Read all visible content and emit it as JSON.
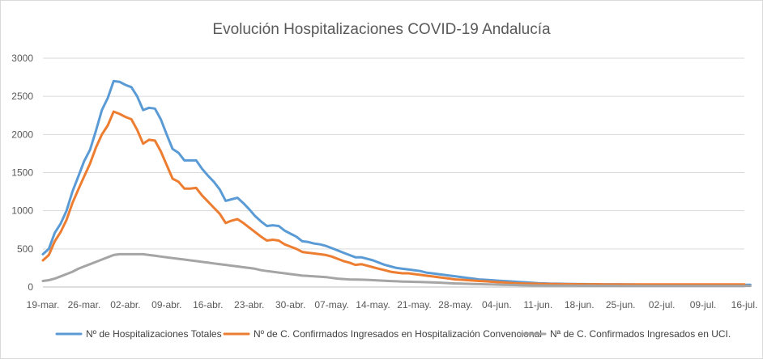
{
  "chart_data": {
    "type": "line",
    "title": "Evolución Hospitalizaciones COVID-19 Andalucía",
    "xlabel": "",
    "ylabel": "",
    "ylim": [
      0,
      3000
    ],
    "yticks": [
      0,
      500,
      1000,
      1500,
      2000,
      2500,
      3000
    ],
    "xtick_labels": [
      "19-mar.",
      "26-mar.",
      "02-abr.",
      "09-abr.",
      "16-abr.",
      "23-abr.",
      "30-abr.",
      "07-may.",
      "14-may.",
      "21-may.",
      "28-may.",
      "04-jun.",
      "11-jun.",
      "18-jun.",
      "25-jun.",
      "02-jul.",
      "09-jul.",
      "16-jul."
    ],
    "x_start": "19-mar.",
    "x_step_days": 1,
    "grid": true,
    "legend_position": "bottom",
    "series": [
      {
        "name": "Nº de Hospitalizaciones Totales",
        "color": "#5b9bd5",
        "values": [
          430,
          500,
          710,
          830,
          1000,
          1250,
          1450,
          1650,
          1800,
          2050,
          2320,
          2480,
          2700,
          2690,
          2650,
          2620,
          2500,
          2320,
          2350,
          2340,
          2200,
          2000,
          1810,
          1760,
          1660,
          1660,
          1660,
          1550,
          1460,
          1380,
          1280,
          1130,
          1150,
          1170,
          1100,
          1020,
          930,
          860,
          800,
          810,
          800,
          740,
          700,
          660,
          600,
          590,
          570,
          560,
          540,
          510,
          480,
          450,
          420,
          390,
          390,
          370,
          350,
          320,
          290,
          270,
          250,
          240,
          230,
          220,
          210,
          190,
          180,
          170,
          160,
          150,
          140,
          130,
          120,
          110,
          100,
          95,
          90,
          85,
          80,
          75,
          70,
          65,
          60,
          55,
          50,
          48,
          45,
          43,
          42,
          40,
          40,
          38,
          38,
          37,
          36,
          35,
          35,
          34,
          34,
          33,
          33,
          32,
          32,
          32,
          31,
          31,
          31,
          30,
          30,
          30,
          30,
          30,
          30,
          30,
          30,
          30,
          30,
          30,
          30,
          30,
          30
        ]
      },
      {
        "name": "Nº de C. Confirmados Ingresados en Hospitalización Convencional",
        "color": "#ed7d31",
        "values": [
          350,
          420,
          600,
          720,
          880,
          1100,
          1280,
          1450,
          1620,
          1830,
          2000,
          2120,
          2300,
          2270,
          2230,
          2200,
          2060,
          1880,
          1930,
          1920,
          1780,
          1600,
          1420,
          1380,
          1290,
          1290,
          1300,
          1200,
          1120,
          1040,
          960,
          840,
          870,
          890,
          840,
          780,
          720,
          660,
          610,
          620,
          610,
          560,
          530,
          500,
          460,
          450,
          440,
          430,
          420,
          400,
          370,
          340,
          320,
          290,
          300,
          280,
          260,
          240,
          220,
          200,
          190,
          180,
          180,
          170,
          160,
          150,
          140,
          130,
          120,
          110,
          100,
          95,
          90,
          85,
          80,
          75,
          70,
          65,
          60,
          55,
          50,
          48,
          46,
          44,
          42,
          41,
          40,
          39,
          38,
          38,
          37,
          37,
          36,
          36,
          36,
          35,
          35,
          35,
          35,
          35,
          35,
          35,
          35,
          35,
          35,
          35,
          35,
          35,
          35,
          35,
          35,
          35,
          35,
          35,
          35,
          35,
          35,
          35,
          35,
          35
        ]
      },
      {
        "name": "Nª de C. Confirmados Ingresados en UCI.",
        "color": "#a5a5a5",
        "values": [
          80,
          90,
          110,
          140,
          170,
          200,
          240,
          270,
          300,
          330,
          360,
          390,
          420,
          430,
          430,
          430,
          430,
          430,
          420,
          410,
          400,
          390,
          380,
          370,
          360,
          350,
          340,
          330,
          320,
          310,
          300,
          290,
          280,
          270,
          260,
          250,
          240,
          220,
          210,
          200,
          190,
          180,
          170,
          160,
          150,
          145,
          140,
          135,
          130,
          120,
          110,
          105,
          100,
          98,
          96,
          94,
          90,
          86,
          82,
          78,
          75,
          72,
          70,
          68,
          66,
          64,
          62,
          58,
          54,
          50,
          47,
          44,
          42,
          40,
          38,
          36,
          34,
          32,
          30,
          28,
          26,
          24,
          22,
          21,
          20,
          20,
          19,
          19,
          18,
          18,
          18,
          17,
          17,
          17,
          16,
          16,
          16,
          16,
          15,
          15,
          15,
          15,
          15,
          15,
          15,
          15,
          15,
          15,
          15,
          15,
          15,
          15,
          15,
          15,
          15,
          15,
          15,
          15,
          15,
          15,
          15
        ]
      }
    ]
  }
}
